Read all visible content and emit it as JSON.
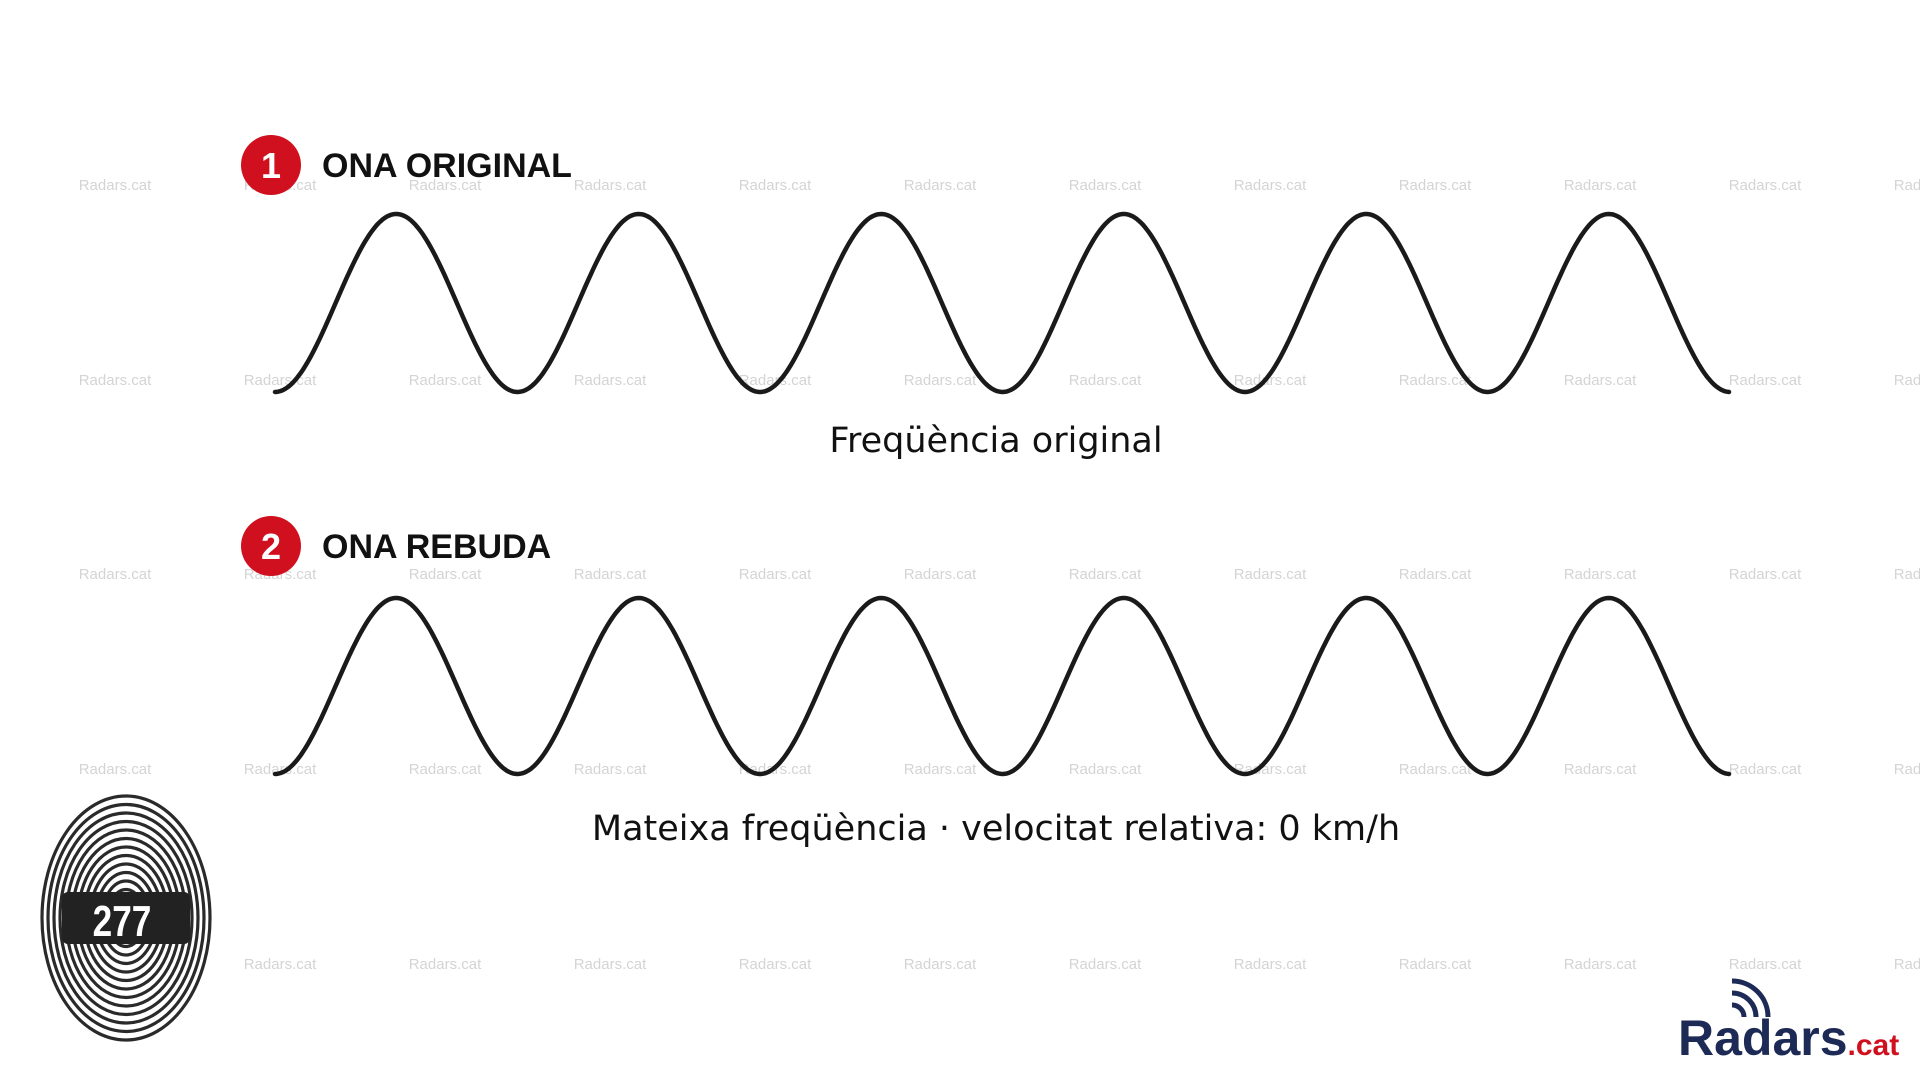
{
  "watermark": "Radars.cat",
  "sections": [
    {
      "number": "1",
      "title": "ONA ORIGINAL",
      "caption": "Freqüència original"
    },
    {
      "number": "2",
      "title": "ONA REBUDA",
      "caption": "Mateixa freqüència · velocitat relativa: 0 km/h"
    }
  ],
  "badge": "277",
  "logo": {
    "name": "Radars",
    "suffix": ".cat"
  }
}
